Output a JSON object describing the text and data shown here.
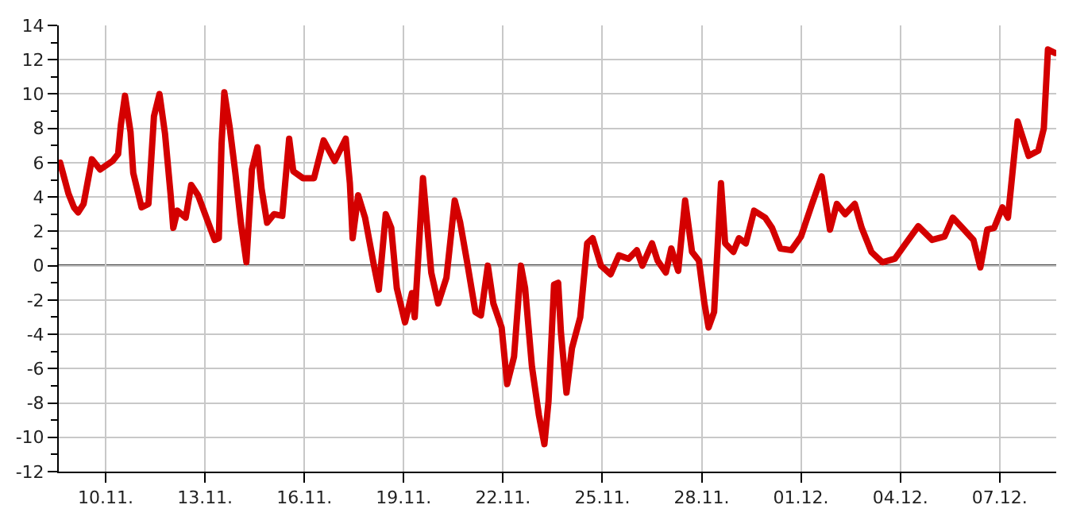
{
  "chart_data": {
    "type": "line",
    "x": [
      "--11-08T15:00",
      "--11-08T17:00",
      "--11-08T21:00",
      "--11-09T01:00",
      "--11-09T04:00",
      "--11-09T08:00",
      "--11-09T14:00",
      "--11-09T20:00",
      "--11-10T05:00",
      "--11-10T09:00",
      "--11-10T11:00",
      "--11-10T14:00",
      "--11-10T18:00",
      "--11-10T20:00",
      "--11-11T02:00",
      "--11-11T07:00",
      "--11-11T11:00",
      "--11-11T15:00",
      "--11-11T19:00",
      "--11-11T23:00",
      "--11-12T01:00",
      "--11-12T04:00",
      "--11-12T10:00",
      "--11-12T14:00",
      "--11-12T19:00",
      "--11-13T01:00",
      "--11-13T07:00",
      "--11-13T10:00",
      "--11-13T12:00",
      "--11-13T14:00",
      "--11-13T18:00",
      "--11-13T22:00",
      "--11-14T02:00",
      "--11-14T06:00",
      "--11-14T10:00",
      "--11-14T14:00",
      "--11-14T17:00",
      "--11-14T21:00",
      "--11-15T02:00",
      "--11-15T08:00",
      "--11-15T13:00",
      "--11-15T16:00",
      "--11-15T23:00",
      "--11-16T07:00",
      "--11-16T14:00",
      "--11-16T22:00",
      "--11-17T06:00",
      "--11-17T09:00",
      "--11-17T11:00",
      "--11-17T15:00",
      "--11-17T20:00",
      "--11-18T02:00",
      "--11-18T06:00",
      "--11-18T11:00",
      "--11-18T15:00",
      "--11-18T19:00",
      "--11-19T01:00",
      "--11-19T06:00",
      "--11-19T08:00",
      "--11-19T14:00",
      "--11-19T20:00",
      "--11-20T01:00",
      "--11-20T07:00",
      "--11-20T13:00",
      "--11-20T17:00",
      "--11-20T22:00",
      "--11-21T04:00",
      "--11-21T08:00",
      "--11-21T13:00",
      "--11-21T17:00",
      "--11-21T23:00",
      "--11-22T03:00",
      "--11-22T08:00",
      "--11-22T13:00",
      "--11-22T16:00",
      "--11-22T21:00",
      "--11-23T02:00",
      "--11-23T06:00",
      "--11-23T09:00",
      "--11-23T13:00",
      "--11-23T16:00",
      "--11-23T18:00",
      "--11-23T22:00",
      "--11-24T02:00",
      "--11-24T08:00",
      "--11-24T13:00",
      "--11-24T17:00",
      "--11-24T23:00",
      "--11-25T06:00",
      "--11-25T12:00",
      "--11-25T19:00",
      "--11-26T01:00",
      "--11-26T05:00",
      "--11-26T12:00",
      "--11-26T16:00",
      "--11-26T22:00",
      "--11-27T02:00",
      "--11-27T07:00",
      "--11-27T12:00",
      "--11-27T17:00",
      "--11-27T22:00",
      "--11-28T02:00",
      "--11-28T05:00",
      "--11-28T09:00",
      "--11-28T14:00",
      "--11-28T17:00",
      "--11-28T23:00",
      "--11-29T03:00",
      "--11-29T08:00",
      "--11-29T14:00",
      "--11-29T22:00",
      "--11-30T03:00",
      "--11-30T09:00",
      "--11-30T17:00",
      "--12-01T00:00",
      "--12-01T08:00",
      "--12-01T15:00",
      "--12-01T21:00",
      "--12-02T02:00",
      "--12-02T08:00",
      "--12-02T15:00",
      "--12-02T20:00",
      "--12-03T03:00",
      "--12-03T11:00",
      "--12-03T20:00",
      "--12-04T04:00",
      "--12-04T13:00",
      "--12-04T23:00",
      "--12-05T08:00",
      "--12-05T14:00",
      "--12-05T21:00",
      "--12-06T05:00",
      "--12-06T10:00",
      "--12-06T15:00",
      "--12-06T20:00",
      "--12-07T02:00",
      "--12-07T06:00",
      "--12-07T13:00",
      "--12-07T21:00",
      "--12-08T04:00",
      "--12-08T08:00",
      "--12-08T11:00",
      "--12-08T16:00"
    ],
    "series": [
      {
        "color": "#d40000",
        "values": [
          6.0,
          5.4,
          4.2,
          3.4,
          3.1,
          3.6,
          6.2,
          5.6,
          6.1,
          6.5,
          8.2,
          9.9,
          7.8,
          5.4,
          3.4,
          3.6,
          8.7,
          10.0,
          7.7,
          4.2,
          2.2,
          3.2,
          2.8,
          4.7,
          4.1,
          2.8,
          1.5,
          1.6,
          7.1,
          10.1,
          8.0,
          5.4,
          2.5,
          0.2,
          5.6,
          6.9,
          4.5,
          2.5,
          3.0,
          2.9,
          7.4,
          5.5,
          5.1,
          5.1,
          7.3,
          6.1,
          7.4,
          4.8,
          1.6,
          4.1,
          2.8,
          0.2,
          -1.4,
          3.0,
          2.2,
          -1.3,
          -3.3,
          -1.6,
          -3.0,
          5.1,
          -0.4,
          -2.2,
          -0.7,
          3.8,
          2.5,
          0.2,
          -2.7,
          -2.9,
          0.0,
          -2.2,
          -3.6,
          -6.9,
          -5.3,
          0.0,
          -1.3,
          -5.9,
          -8.7,
          -10.4,
          -7.9,
          -1.1,
          -1.0,
          -3.9,
          -7.4,
          -4.8,
          -3.0,
          1.3,
          1.6,
          0.0,
          -0.5,
          0.6,
          0.4,
          0.9,
          0.0,
          1.3,
          0.3,
          -0.4,
          1.0,
          -0.3,
          3.8,
          0.8,
          0.3,
          -2.2,
          -3.6,
          -2.7,
          4.8,
          1.3,
          0.8,
          1.6,
          1.3,
          3.2,
          2.8,
          2.2,
          1.0,
          0.9,
          1.7,
          3.6,
          5.2,
          2.1,
          3.6,
          3.0,
          3.6,
          2.2,
          0.8,
          0.2,
          0.4,
          1.3,
          2.3,
          1.5,
          1.7,
          2.8,
          2.2,
          1.5,
          -0.1,
          2.1,
          2.2,
          3.4,
          2.8,
          8.4,
          6.4,
          6.7,
          8.0,
          12.6,
          12.4
        ]
      }
    ],
    "xlim": [
      "--11-08T14:00",
      "--12-08T17:00"
    ],
    "xticks": [
      {
        "value": "--11-10",
        "label": "10.11."
      },
      {
        "value": "--11-13",
        "label": "13.11."
      },
      {
        "value": "--11-16",
        "label": "16.11."
      },
      {
        "value": "--11-19",
        "label": "19.11."
      },
      {
        "value": "--11-22",
        "label": "22.11."
      },
      {
        "value": "--11-25",
        "label": "25.11."
      },
      {
        "value": "--11-28",
        "label": "28.11."
      },
      {
        "value": "--12-01",
        "label": "01.12."
      },
      {
        "value": "--12-04",
        "label": "04.12."
      },
      {
        "value": "--12-07",
        "label": "07.12."
      }
    ],
    "ylim": [
      -12,
      14
    ],
    "yticks": [
      -12,
      {
        "value": -11,
        "label": null
      },
      -10,
      {
        "value": -9,
        "label": null
      },
      -8,
      {
        "value": -7,
        "label": null
      },
      -6,
      {
        "value": -5,
        "label": null
      },
      -4,
      {
        "value": -3,
        "label": null
      },
      -2,
      {
        "value": -1,
        "label": null
      },
      0,
      {
        "value": 1,
        "label": null
      },
      2,
      {
        "value": 3,
        "label": null
      },
      4,
      {
        "value": 5,
        "label": null
      },
      6,
      {
        "value": 7,
        "label": null
      },
      8,
      {
        "value": 9,
        "label": null
      },
      10,
      {
        "value": 11,
        "label": null
      },
      12,
      {
        "value": 13,
        "label": null
      },
      14
    ],
    "grid": true,
    "marker": "none",
    "line_style": "solid",
    "ref_lines": [
      {
        "axis": "y",
        "value": 0,
        "color": "#000000"
      }
    ]
  }
}
